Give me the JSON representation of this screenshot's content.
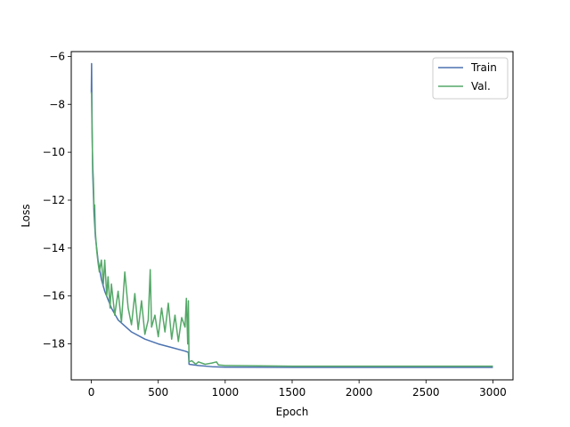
{
  "chart_data": {
    "type": "line",
    "title": "",
    "xlabel": "Epoch",
    "ylabel": "Loss",
    "xlim": [
      -150,
      3150
    ],
    "ylim": [
      -19.5,
      -5.8
    ],
    "xticks": [
      0,
      500,
      1000,
      1500,
      2000,
      2500,
      3000
    ],
    "yticks": [
      -18,
      -16,
      -14,
      -12,
      -10,
      -8,
      -6
    ],
    "xtick_labels": [
      "0",
      "500",
      "1000",
      "1500",
      "2000",
      "2500",
      "3000"
    ],
    "ytick_labels": [
      "−18",
      "−16",
      "−14",
      "−12",
      "−10",
      "−8",
      "−6"
    ],
    "grid": false,
    "legend": "top-right",
    "series": [
      {
        "name": "Train",
        "color": "#4c72b0",
        "x": [
          0,
          2,
          5,
          10,
          20,
          30,
          50,
          75,
          100,
          150,
          200,
          300,
          400,
          500,
          600,
          700,
          725,
          730,
          800,
          900,
          1000,
          1500,
          2000,
          2500,
          3000
        ],
        "y": [
          -7.5,
          -6.3,
          -8.5,
          -10.8,
          -12.5,
          -13.5,
          -14.5,
          -15.3,
          -15.8,
          -16.5,
          -17.0,
          -17.5,
          -17.8,
          -18.0,
          -18.15,
          -18.3,
          -18.35,
          -18.85,
          -18.9,
          -18.95,
          -18.97,
          -18.98,
          -18.98,
          -18.98,
          -18.98
        ]
      },
      {
        "name": "Val.",
        "color": "#55a868",
        "x": [
          0,
          2,
          5,
          10,
          15,
          20,
          25,
          30,
          40,
          50,
          60,
          75,
          90,
          100,
          115,
          125,
          140,
          150,
          175,
          200,
          225,
          250,
          275,
          300,
          325,
          350,
          375,
          400,
          425,
          440,
          450,
          475,
          500,
          525,
          550,
          575,
          600,
          625,
          650,
          675,
          700,
          710,
          720,
          725,
          730,
          750,
          780,
          800,
          850,
          900,
          935,
          950,
          1000,
          1500,
          2000,
          2500,
          3000
        ],
        "y": [
          -7.5,
          -7.6,
          -9.0,
          -10.5,
          -11.1,
          -12.3,
          -12.2,
          -13.3,
          -14.1,
          -14.6,
          -15.0,
          -14.5,
          -15.5,
          -14.5,
          -16.0,
          -15.2,
          -16.5,
          -15.5,
          -16.8,
          -15.8,
          -17.1,
          -15.0,
          -16.5,
          -17.2,
          -15.9,
          -17.4,
          -16.2,
          -17.6,
          -17.0,
          -14.9,
          -17.3,
          -16.8,
          -17.7,
          -16.5,
          -17.5,
          -16.3,
          -17.8,
          -16.8,
          -17.9,
          -16.9,
          -17.3,
          -16.1,
          -18.0,
          -16.2,
          -18.75,
          -18.7,
          -18.85,
          -18.75,
          -18.85,
          -18.8,
          -18.75,
          -18.88,
          -18.9,
          -18.93,
          -18.93,
          -18.93,
          -18.93
        ]
      }
    ]
  }
}
